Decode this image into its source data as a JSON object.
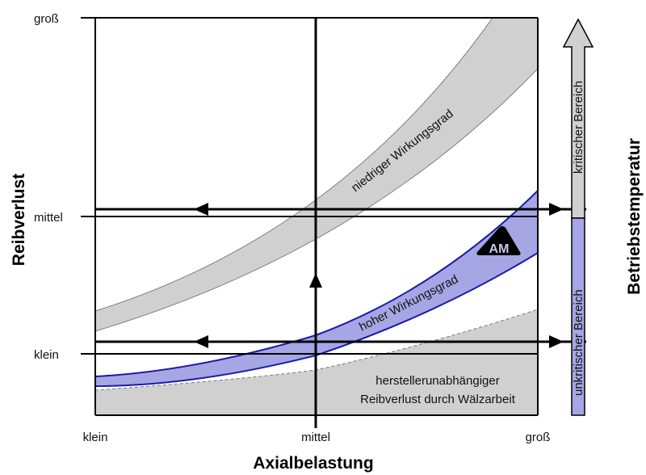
{
  "y_axis": {
    "title": "Reibverlust",
    "ticks": [
      "groß",
      "mittel",
      "klein"
    ]
  },
  "x_axis": {
    "title": "Axialbelastung",
    "ticks": [
      "klein",
      "mittel",
      "groß"
    ]
  },
  "bands": {
    "low_efficiency": "niedriger Wirkungsgrad",
    "high_efficiency": "hoher Wirkungsgrad",
    "base_loss_line1": "herstellerunabhängiger",
    "base_loss_line2": "Reibverlust durch Wälzarbeit"
  },
  "badge": "AM",
  "temperature": {
    "title": "Betriebstemperatur",
    "critical": "kritischer Bereich",
    "uncritical": "unkritischer Bereich"
  },
  "colors": {
    "gray": "#d0d0d0",
    "blue_fill": "#a6a6e4",
    "blue_line": "#1a1aa8",
    "text": "#111111"
  }
}
